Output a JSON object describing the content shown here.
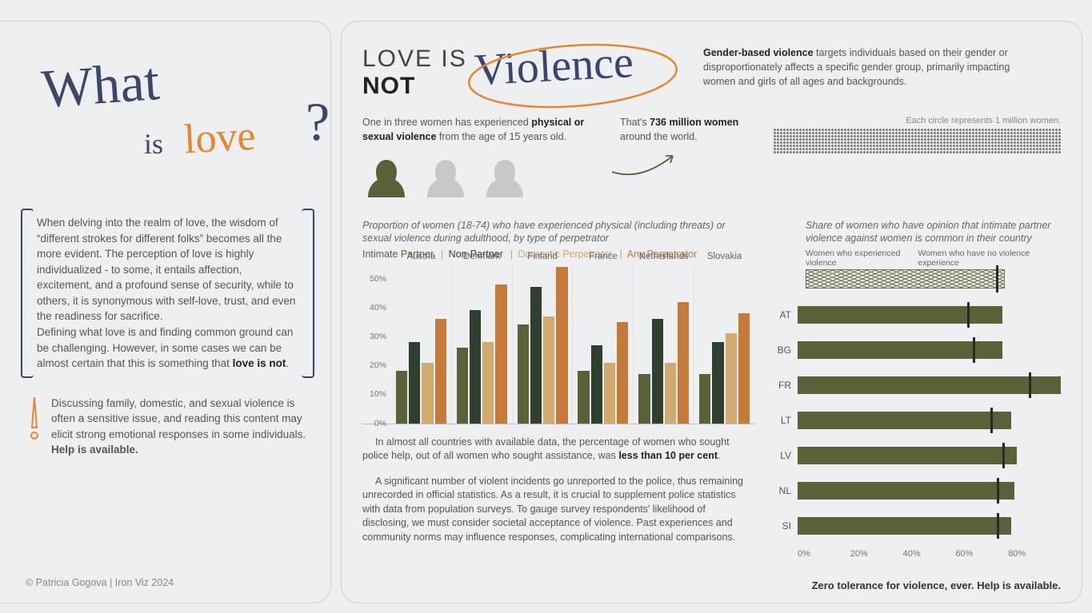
{
  "colors": {
    "bg": "#edeff0",
    "olive": "#5a6139",
    "olive_light": "#7a8255",
    "dark_green": "#2f4030",
    "orange": "#c57a3a",
    "tan": "#d2a96f",
    "navy": "#3c4668",
    "accent_orange": "#e8862b",
    "text": "#555555",
    "text_strong": "#222222",
    "grid": "#d8d8d8"
  },
  "left": {
    "title_what": "What",
    "title_is": "is",
    "title_love": "love",
    "title_q": "?",
    "para1": "When delving into the realm of love, the wisdom of “different strokes for different folks” becomes all the more evident. The perception of love is highly individualized - to some, it entails affection, excitement, and a profound sense of security, while to others, it is synonymous with self-love, trust, and even the readiness for sacrifice.",
    "para2_a": "Defining what love is and finding common ground can be challenging. However, in some cases we can be almost certain that this is something that ",
    "para2_b": "love is not",
    "para2_c": ".",
    "warn": "Discussing family, domestic, and sexual violence is often a sensitive issue, and reading this content may elicit strong emotional responses in some individuals.",
    "warn_bold": "Help is available.",
    "credit": "© Patricia Gogova | Iron Viz 2024"
  },
  "right": {
    "title_line1": "LOVE IS",
    "title_line2": "NOT",
    "title_script": "Violence",
    "gbv_bold": "Gender-based violence",
    "gbv_rest": " targets individuals based on their gender or disproportionately affects a specific gender group, primarily impacting women and girls of all ages and backgrounds.",
    "one_in_three_a": "One in three women has experienced ",
    "one_in_three_b": "physical or sexual violence",
    "one_in_three_c": " from the age of 15 years old.",
    "thats_a": "That's ",
    "thats_b": "736 million women",
    "thats_c": " around the world.",
    "dots_caption": "Each circle represents 1 million women.",
    "grouped_chart": {
      "title": "Proportion of women (18-74) who have experienced physical (including threats) or sexual violence during adulthood, by type of perpetrator",
      "legend": {
        "l1": "Intimate Partner",
        "c1": "#5a6139",
        "l2": "Non-Partner",
        "c2": "#2f4030",
        "l3": "Domestic Perpetrator",
        "c3": "#d2a96f",
        "l4": "Any Perpetrator",
        "c4": "#c57a3a"
      },
      "ymax": 55,
      "yticks": [
        "50%",
        "40%",
        "30%",
        "20%",
        "10%",
        "0%"
      ],
      "countries": [
        "Austria",
        "Denmark",
        "Finland",
        "France",
        "Netherlands",
        "Slovakia"
      ],
      "series": [
        {
          "color": "#5a6139",
          "values": [
            18,
            26,
            34,
            18,
            17,
            17
          ]
        },
        {
          "color": "#2f4030",
          "values": [
            28,
            39,
            47,
            27,
            36,
            28
          ]
        },
        {
          "color": "#d2a96f",
          "values": [
            21,
            28,
            37,
            21,
            21,
            31
          ]
        },
        {
          "color": "#c57a3a",
          "values": [
            36,
            48,
            54,
            35,
            42,
            38
          ]
        }
      ]
    },
    "note1": "In almost all countries with available data, the percentage of women who sought police help, out of all women who sought assistance, was ",
    "note1_bold": "less than 10 per cent",
    "note1_end": ".",
    "note2": "A significant number of violent incidents go unreported to the police, thus remaining unrecorded in official statistics. As a result, it is crucial to supplement police statistics with data from population surveys. To gauge survey respondents' likelihood of disclosing, we must consider societal acceptance of violence. Past experiences and community norms may influence responses, complicating international comparisons.",
    "opinion_chart": {
      "title": "Share of women who have opinion that intimate partner violence against women is common in their country",
      "legend_left": "Women who experienced violence",
      "legend_right": "Women who have no violence experience",
      "scribble": {
        "fill_pct": 76,
        "mark_pct": 73
      },
      "xmax": 90,
      "xticks": [
        "0%",
        "20%",
        "40%",
        "60%",
        "80%"
      ],
      "rows": [
        {
          "label": "AT",
          "fill": 70,
          "mark": 58
        },
        {
          "label": "BG",
          "fill": 70,
          "mark": 60
        },
        {
          "label": "FR",
          "fill": 90,
          "mark": 79
        },
        {
          "label": "LT",
          "fill": 73,
          "mark": 66
        },
        {
          "label": "LV",
          "fill": 75,
          "mark": 70
        },
        {
          "label": "NL",
          "fill": 74,
          "mark": 68
        },
        {
          "label": "SI",
          "fill": 73,
          "mark": 68
        }
      ]
    },
    "footer": "Zero tolerance for violence, ever. Help is available."
  }
}
